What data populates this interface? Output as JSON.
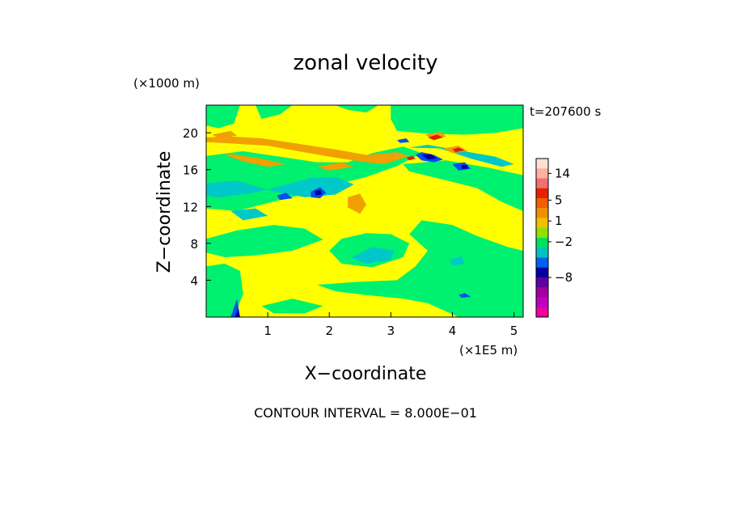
{
  "chart_data": {
    "type": "heatmap",
    "title": "zonal velocity",
    "time_label": "t=207600 s",
    "y_multiplier": "(×1000 m)",
    "x_multiplier": "(×1E5 m)",
    "xlabel": "X−coordinate",
    "ylabel": "Z−coordinate",
    "footer": "CONTOUR INTERVAL = 8.000E−01",
    "xlim": [
      0,
      5.15
    ],
    "ylim": [
      0,
      23
    ],
    "x_ticks": [
      {
        "value": 1,
        "label": "1"
      },
      {
        "value": 2,
        "label": "2"
      },
      {
        "value": 3,
        "label": "3"
      },
      {
        "value": 4,
        "label": "4"
      },
      {
        "value": 5,
        "label": "5"
      }
    ],
    "y_ticks": [
      {
        "value": 4,
        "label": "4"
      },
      {
        "value": 8,
        "label": "8"
      },
      {
        "value": 12,
        "label": "12"
      },
      {
        "value": 16,
        "label": "16"
      },
      {
        "value": 20,
        "label": "20"
      }
    ],
    "background_level": "#ffff00",
    "colorbar": {
      "colors": [
        "#ffe0d0",
        "#ffb0a0",
        "#f07070",
        "#e82000",
        "#f06000",
        "#f09000",
        "#f0c000",
        "#90e000",
        "#00e060",
        "#00c0c0",
        "#0060f0",
        "#0000a0",
        "#6000a0",
        "#a000a0",
        "#c000c0",
        "#f000a0"
      ],
      "labels": [
        {
          "value": "14",
          "index": 1.5
        },
        {
          "value": "5",
          "index": 4.2
        },
        {
          "value": "1",
          "index": 6.3
        },
        {
          "value": "−2",
          "index": 8.4
        },
        {
          "value": "−8",
          "index": 12.0
        }
      ]
    },
    "regions": [
      {
        "level": "#00f070",
        "points": [
          [
            0,
            23
          ],
          [
            0.55,
            23
          ],
          [
            0.45,
            21
          ],
          [
            0.2,
            20.5
          ],
          [
            0,
            20.8
          ]
        ]
      },
      {
        "level": "#00f070",
        "points": [
          [
            0.8,
            23
          ],
          [
            1.4,
            23
          ],
          [
            1.2,
            22
          ],
          [
            0.9,
            21.5
          ]
        ]
      },
      {
        "level": "#00f070",
        "points": [
          [
            2.1,
            23
          ],
          [
            2.8,
            23
          ],
          [
            2.6,
            22.2
          ],
          [
            2.3,
            22.5
          ]
        ]
      },
      {
        "level": "#00f070",
        "points": [
          [
            3.0,
            23
          ],
          [
            5.15,
            23
          ],
          [
            5.15,
            20.5
          ],
          [
            4.7,
            20
          ],
          [
            4.2,
            19.8
          ],
          [
            3.6,
            19.9
          ],
          [
            3.1,
            20.2
          ],
          [
            3.0,
            21.5
          ]
        ]
      },
      {
        "level": "#00f070",
        "points": [
          [
            0,
            17.5
          ],
          [
            0.6,
            18
          ],
          [
            1.2,
            17.4
          ],
          [
            1.8,
            16.8
          ],
          [
            2.3,
            16.8
          ],
          [
            2.7,
            17.8
          ],
          [
            3.2,
            18.5
          ],
          [
            3.5,
            17.8
          ],
          [
            3.1,
            16.4
          ],
          [
            2.6,
            15.2
          ],
          [
            2.0,
            14.2
          ],
          [
            1.5,
            13.2
          ],
          [
            0.9,
            12.2
          ],
          [
            0.5,
            11.5
          ],
          [
            0,
            11.8
          ]
        ]
      },
      {
        "level": "#00f070",
        "points": [
          [
            3.2,
            16.6
          ],
          [
            3.9,
            17
          ],
          [
            4.6,
            16.2
          ],
          [
            5.15,
            15.4
          ],
          [
            5.15,
            11.5
          ],
          [
            4.8,
            12.5
          ],
          [
            4.4,
            14
          ],
          [
            3.8,
            15
          ],
          [
            3.3,
            15.8
          ]
        ]
      },
      {
        "level": "#00f070",
        "points": [
          [
            0,
            8.5
          ],
          [
            0.5,
            9.4
          ],
          [
            1.1,
            10
          ],
          [
            1.6,
            9.6
          ],
          [
            1.9,
            8.4
          ],
          [
            1.4,
            7.2
          ],
          [
            0.8,
            6.7
          ],
          [
            0.3,
            6.5
          ],
          [
            0,
            7
          ]
        ]
      },
      {
        "level": "#00f070",
        "points": [
          [
            2.2,
            8.5
          ],
          [
            2.6,
            9.1
          ],
          [
            3.0,
            9.0
          ],
          [
            3.3,
            8.0
          ],
          [
            3.2,
            6.5
          ],
          [
            2.7,
            5.4
          ],
          [
            2.2,
            5.8
          ],
          [
            2.0,
            7.2
          ]
        ]
      },
      {
        "level": "#00f070",
        "points": [
          [
            3.5,
            10.5
          ],
          [
            4.0,
            10
          ],
          [
            4.4,
            8.8
          ],
          [
            4.9,
            7.6
          ],
          [
            5.15,
            7.2
          ],
          [
            5.15,
            0
          ],
          [
            4.1,
            0
          ],
          [
            3.6,
            1.5
          ],
          [
            3.2,
            2.0
          ],
          [
            2.6,
            2.4
          ],
          [
            2.1,
            2.8
          ],
          [
            1.8,
            3.5
          ],
          [
            2.4,
            3.8
          ],
          [
            3.1,
            4.0
          ],
          [
            3.4,
            5.5
          ],
          [
            3.6,
            7.2
          ],
          [
            3.3,
            9.0
          ]
        ]
      },
      {
        "level": "#00f070",
        "points": [
          [
            0,
            5.5
          ],
          [
            0.3,
            5.8
          ],
          [
            0.55,
            5
          ],
          [
            0.6,
            2.5
          ],
          [
            0.45,
            0
          ],
          [
            0,
            0
          ]
        ]
      },
      {
        "level": "#00f070",
        "points": [
          [
            0.9,
            1.2
          ],
          [
            1.4,
            2.0
          ],
          [
            1.9,
            1.2
          ],
          [
            1.6,
            0.4
          ],
          [
            1.1,
            0.4
          ]
        ]
      },
      {
        "level": "#00c8c8",
        "points": [
          [
            0,
            14.5
          ],
          [
            0.5,
            14.8
          ],
          [
            1.0,
            13.8
          ],
          [
            1.6,
            13.0
          ],
          [
            2.1,
            13.3
          ],
          [
            2.4,
            14.4
          ],
          [
            2.1,
            15.2
          ],
          [
            1.7,
            15.1
          ],
          [
            1.2,
            14.2
          ],
          [
            0.7,
            13.4
          ],
          [
            0.2,
            13.0
          ],
          [
            0,
            13.2
          ]
        ]
      },
      {
        "level": "#00c8c8",
        "points": [
          [
            0.4,
            11.5
          ],
          [
            0.8,
            11.8
          ],
          [
            1.0,
            11.0
          ],
          [
            0.6,
            10.5
          ]
        ]
      },
      {
        "level": "#00c8c8",
        "points": [
          [
            3.3,
            18.4
          ],
          [
            3.8,
            18.3
          ],
          [
            4.3,
            17.2
          ],
          [
            4.8,
            16.3
          ],
          [
            5.0,
            16.6
          ],
          [
            4.7,
            17.4
          ],
          [
            4.1,
            18.1
          ],
          [
            3.6,
            18.7
          ]
        ]
      },
      {
        "level": "#00c8c8",
        "points": [
          [
            2.35,
            6.4
          ],
          [
            2.7,
            7.6
          ],
          [
            3.05,
            7.2
          ],
          [
            3.0,
            6.2
          ],
          [
            2.6,
            5.8
          ]
        ]
      },
      {
        "level": "#00c8c8",
        "points": [
          [
            3.95,
            6.2
          ],
          [
            4.15,
            6.6
          ],
          [
            4.2,
            5.8
          ],
          [
            4.0,
            5.6
          ]
        ]
      },
      {
        "level": "#f0a000",
        "points": [
          [
            0,
            19.0
          ],
          [
            0.5,
            18.8
          ],
          [
            1.0,
            18.6
          ],
          [
            1.5,
            18.0
          ],
          [
            2.1,
            17.3
          ],
          [
            2.6,
            16.8
          ],
          [
            2.9,
            16.6
          ],
          [
            3.3,
            17.5
          ],
          [
            3.1,
            17.9
          ],
          [
            2.6,
            17.6
          ],
          [
            2.1,
            18.2
          ],
          [
            1.5,
            18.8
          ],
          [
            0.9,
            19.4
          ],
          [
            0.4,
            19.6
          ],
          [
            0,
            19.5
          ]
        ]
      },
      {
        "level": "#f0a000",
        "points": [
          [
            0,
            17.2
          ],
          [
            0.3,
            17.6
          ],
          [
            0.6,
            16.9
          ],
          [
            1.0,
            16.3
          ],
          [
            1.3,
            16.6
          ],
          [
            0.9,
            17.2
          ],
          [
            0.4,
            17.7
          ]
        ]
      },
      {
        "level": "#f0a000",
        "points": [
          [
            1.8,
            16.3
          ],
          [
            2.2,
            16.8
          ],
          [
            2.4,
            16.3
          ],
          [
            2.0,
            15.9
          ]
        ]
      },
      {
        "level": "#f0a000",
        "points": [
          [
            2.3,
            13.0
          ],
          [
            2.5,
            13.4
          ],
          [
            2.6,
            12.2
          ],
          [
            2.5,
            11.2
          ],
          [
            2.3,
            11.9
          ]
        ]
      },
      {
        "level": "#f0a000",
        "points": [
          [
            0.1,
            19.8
          ],
          [
            0.4,
            20.2
          ],
          [
            0.5,
            19.7
          ],
          [
            0.2,
            19.4
          ]
        ]
      },
      {
        "level": "#f0a000",
        "points": [
          [
            3.55,
            19.8
          ],
          [
            3.8,
            20.1
          ],
          [
            3.9,
            19.6
          ],
          [
            3.7,
            19.3
          ]
        ]
      },
      {
        "level": "#f0a000",
        "points": [
          [
            3.85,
            18.3
          ],
          [
            4.1,
            18.6
          ],
          [
            4.25,
            18.0
          ],
          [
            4.0,
            17.8
          ]
        ]
      },
      {
        "level": "#e02000",
        "points": [
          [
            3.6,
            19.5
          ],
          [
            3.75,
            19.8
          ],
          [
            3.85,
            19.5
          ],
          [
            3.7,
            19.2
          ]
        ]
      },
      {
        "level": "#e02000",
        "points": [
          [
            4.0,
            18.2
          ],
          [
            4.1,
            18.4
          ],
          [
            4.2,
            18.1
          ],
          [
            4.05,
            17.9
          ]
        ]
      },
      {
        "level": "#e02000",
        "points": [
          [
            3.25,
            17.3
          ],
          [
            3.35,
            17.5
          ],
          [
            3.4,
            17.2
          ],
          [
            3.3,
            17.0
          ]
        ]
      },
      {
        "level": "#0050f0",
        "points": [
          [
            3.4,
            17.6
          ],
          [
            3.5,
            17.9
          ],
          [
            3.7,
            17.6
          ],
          [
            3.85,
            17.1
          ],
          [
            3.7,
            16.8
          ],
          [
            3.5,
            17.0
          ]
        ]
      },
      {
        "level": "#0050f0",
        "points": [
          [
            4.0,
            16.6
          ],
          [
            4.2,
            16.8
          ],
          [
            4.3,
            16.1
          ],
          [
            4.1,
            15.9
          ]
        ]
      },
      {
        "level": "#0050f0",
        "points": [
          [
            1.7,
            13.6
          ],
          [
            1.85,
            14.1
          ],
          [
            1.95,
            13.5
          ],
          [
            1.85,
            12.9
          ],
          [
            1.7,
            13.0
          ]
        ]
      },
      {
        "level": "#0050f0",
        "points": [
          [
            1.15,
            13.2
          ],
          [
            1.3,
            13.5
          ],
          [
            1.4,
            12.9
          ],
          [
            1.2,
            12.7
          ]
        ]
      },
      {
        "level": "#0050f0",
        "points": [
          [
            3.1,
            19.2
          ],
          [
            3.25,
            19.4
          ],
          [
            3.3,
            19.0
          ],
          [
            3.15,
            18.9
          ]
        ]
      },
      {
        "level": "#0050f0",
        "points": [
          [
            4.1,
            2.4
          ],
          [
            4.2,
            2.6
          ],
          [
            4.3,
            2.2
          ],
          [
            4.15,
            2.1
          ]
        ]
      },
      {
        "level": "#0050f0",
        "points": [
          [
            0.4,
            0
          ],
          [
            0.5,
            2.0
          ],
          [
            0.55,
            0
          ]
        ]
      },
      {
        "level": "#0000a0",
        "points": [
          [
            3.5,
            17.6
          ],
          [
            3.65,
            17.7
          ],
          [
            3.75,
            17.2
          ],
          [
            3.6,
            17.1
          ]
        ]
      },
      {
        "level": "#0000a0",
        "points": [
          [
            4.15,
            16.5
          ],
          [
            4.25,
            16.5
          ],
          [
            4.25,
            16.1
          ],
          [
            4.15,
            16.1
          ]
        ]
      },
      {
        "level": "#0000a0",
        "points": [
          [
            1.76,
            13.7
          ],
          [
            1.86,
            13.8
          ],
          [
            1.88,
            13.3
          ],
          [
            1.78,
            13.2
          ]
        ]
      },
      {
        "level": "#0000a0",
        "points": [
          [
            0.47,
            0
          ],
          [
            0.52,
            0.9
          ],
          [
            0.55,
            0
          ]
        ]
      }
    ]
  }
}
